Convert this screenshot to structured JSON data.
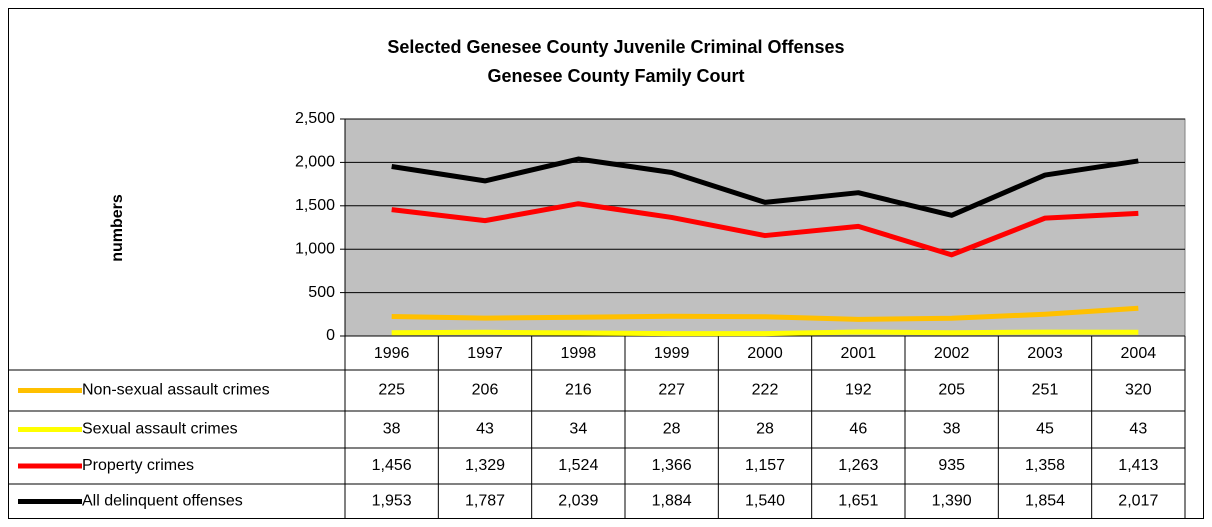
{
  "chart_data": {
    "type": "line",
    "title": "Selected Genesee County Juvenile Criminal Offenses",
    "subtitle": "Genesee County Family Court",
    "y_label": "numbers",
    "categories": [
      "1996",
      "1997",
      "1998",
      "1999",
      "2000",
      "2001",
      "2002",
      "2003",
      "2004"
    ],
    "series": [
      {
        "name": "Non-sexual assault crimes",
        "color": "#ffc000",
        "values": [
          225,
          206,
          216,
          227,
          222,
          192,
          205,
          251,
          320
        ]
      },
      {
        "name": "Sexual assault crimes",
        "color": "#ffff00",
        "values": [
          38,
          43,
          34,
          28,
          28,
          46,
          38,
          45,
          43
        ]
      },
      {
        "name": "Property crimes",
        "color": "#ff0000",
        "values": [
          1456,
          1329,
          1524,
          1366,
          1157,
          1263,
          935,
          1358,
          1413
        ],
        "value_labels": [
          "1,456",
          "1,329",
          "1,524",
          "1,366",
          "1,157",
          "1,263",
          "935",
          "1,358",
          "1,413"
        ]
      },
      {
        "name": "All delinquent offenses",
        "color": "#000000",
        "values": [
          1953,
          1787,
          2039,
          1884,
          1540,
          1651,
          1390,
          1854,
          2017
        ],
        "value_labels": [
          "1,953",
          "1,787",
          "2,039",
          "1,884",
          "1,540",
          "1,651",
          "1,390",
          "1,854",
          "2,017"
        ]
      }
    ],
    "ylim": [
      0,
      2500
    ],
    "yticks": [
      0,
      500,
      {
        "value": 1000,
        "label": "1,000"
      },
      {
        "value": 1500,
        "label": "1,500"
      },
      {
        "value": 2000,
        "label": "2,000"
      },
      {
        "value": 2500,
        "label": "2,500"
      }
    ],
    "grid": true,
    "plot_background": "#c0c0c0"
  }
}
